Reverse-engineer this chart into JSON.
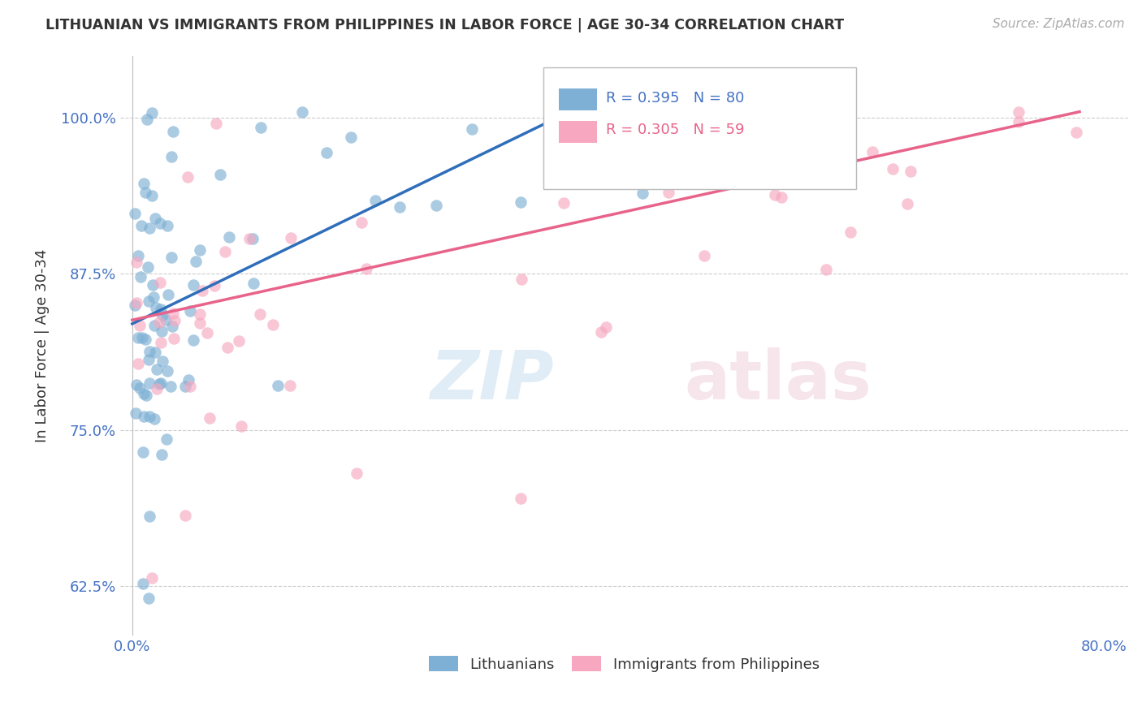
{
  "title": "LITHUANIAN VS IMMIGRANTS FROM PHILIPPINES IN LABOR FORCE | AGE 30-34 CORRELATION CHART",
  "source_text": "Source: ZipAtlas.com",
  "ylabel": "In Labor Force | Age 30-34",
  "xlim": [
    -0.01,
    0.82
  ],
  "ylim": [
    0.585,
    1.05
  ],
  "xticks": [
    0.0,
    0.1,
    0.2,
    0.3,
    0.4,
    0.5,
    0.6,
    0.7,
    0.8
  ],
  "xticklabels": [
    "0.0%",
    "",
    "",
    "",
    "",
    "",
    "",
    "",
    "80.0%"
  ],
  "yticks": [
    0.625,
    0.75,
    0.875,
    1.0
  ],
  "yticklabels": [
    "62.5%",
    "75.0%",
    "87.5%",
    "100.0%"
  ],
  "blue_color": "#7EB0D5",
  "pink_color": "#F7A8C0",
  "blue_line_color": "#2F6EBA",
  "pink_line_color": "#E8638A",
  "legend_r_blue": "R = 0.395",
  "legend_n_blue": "N = 80",
  "legend_r_pink": "R = 0.305",
  "legend_n_pink": "N = 59",
  "legend_label_blue": "Lithuanians",
  "legend_label_pink": "Immigrants from Philippines",
  "blue_trend_x0": 0.0,
  "blue_trend_y0": 0.835,
  "blue_trend_x1": 0.36,
  "blue_trend_y1": 1.005,
  "pink_trend_x0": 0.0,
  "pink_trend_y0": 0.838,
  "pink_trend_x1": 0.78,
  "pink_trend_y1": 1.005
}
